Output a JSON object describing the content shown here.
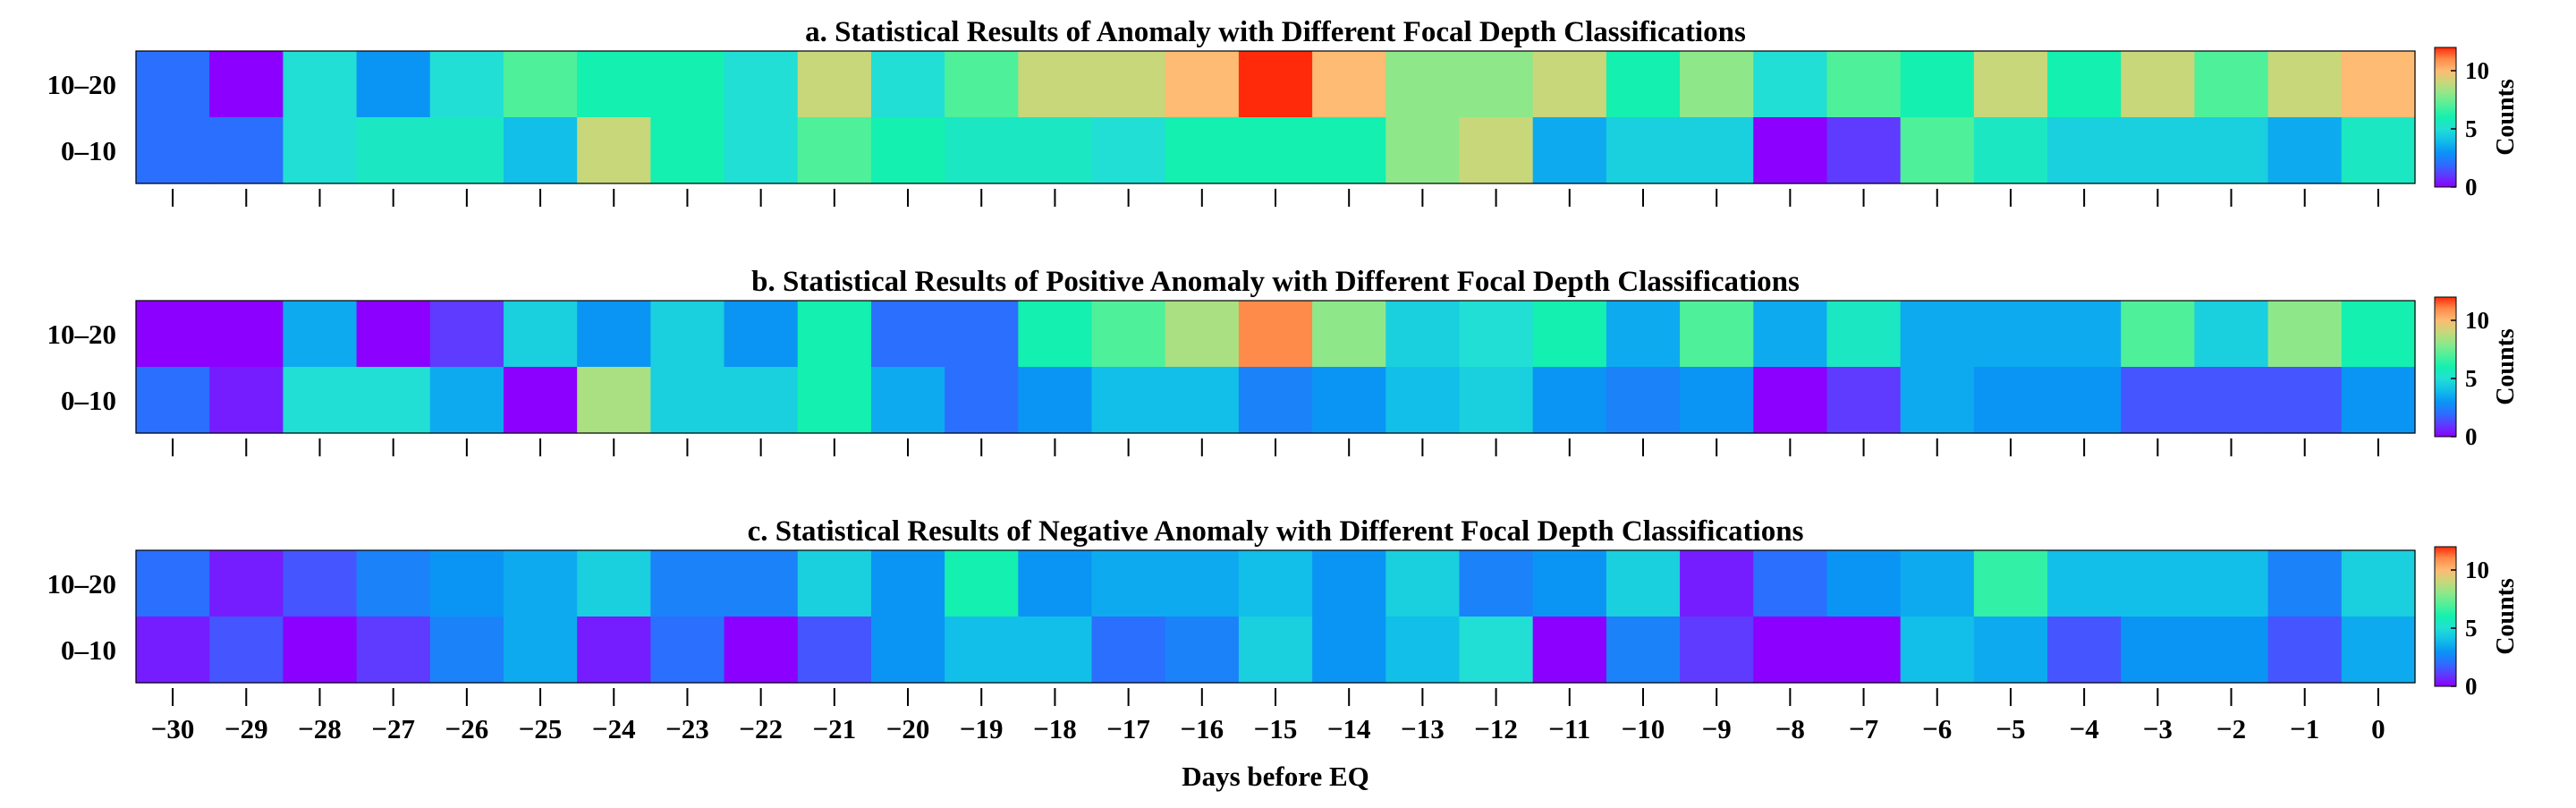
{
  "chart_data": [
    {
      "type": "heatmap",
      "title": "a. Statistical Results of Anomaly with  Different Focal Depth Classifications",
      "x": [
        -30,
        -29,
        -28,
        -27,
        -26,
        -25,
        -24,
        -23,
        -22,
        -21,
        -20,
        -19,
        -18,
        -17,
        -16,
        -15,
        -14,
        -13,
        -12,
        -11,
        -10,
        -9,
        -8,
        -7,
        -6,
        -5,
        -4,
        -3,
        -2,
        -1,
        0
      ],
      "rows": [
        "10–20",
        "0–10"
      ],
      "values": [
        [
          2,
          0,
          5,
          3,
          5,
          7,
          6,
          6,
          5,
          9,
          5,
          7,
          9,
          9,
          10,
          12,
          10,
          8,
          8,
          9,
          6,
          8,
          5,
          7,
          6,
          9,
          6,
          9,
          7,
          9,
          10
        ],
        [
          2,
          2,
          5,
          5.5,
          5.5,
          4,
          9,
          6,
          5,
          7,
          6,
          5.5,
          5.5,
          5,
          6,
          6,
          6,
          8,
          9,
          3.5,
          4.5,
          4.5,
          0,
          1,
          7,
          5.5,
          4.5,
          4.5,
          4.5,
          3.5,
          5.5
        ]
      ],
      "colorbar": {
        "label": "Counts",
        "ticks": [
          0,
          5,
          10
        ],
        "range": [
          0,
          12
        ]
      }
    },
    {
      "type": "heatmap",
      "title": "b. Statistical Results of Positive Anomaly with Different Focal Depth Classifications",
      "x": [
        -30,
        -29,
        -28,
        -27,
        -26,
        -25,
        -24,
        -23,
        -22,
        -21,
        -20,
        -19,
        -18,
        -17,
        -16,
        -15,
        -14,
        -13,
        -12,
        -11,
        -10,
        -9,
        -8,
        -7,
        -6,
        -5,
        -4,
        -3,
        -2,
        -1,
        0
      ],
      "rows": [
        "10–20",
        "0–10"
      ],
      "values": [
        [
          0,
          0,
          3.5,
          0,
          1,
          4.5,
          3,
          4.5,
          3,
          6,
          2,
          2,
          6,
          7,
          8.5,
          11,
          8,
          4.5,
          5,
          6,
          3.5,
          7,
          3.5,
          5.5,
          3.5,
          3.5,
          3.5,
          7,
          4.5,
          8,
          6
        ],
        [
          2,
          0.5,
          5,
          5,
          3.5,
          0,
          8.5,
          4.5,
          4.5,
          6,
          3.5,
          2,
          3,
          4,
          4,
          2.5,
          3,
          4,
          4.5,
          3,
          2.5,
          3,
          0,
          1,
          3.5,
          3,
          3,
          1.5,
          1.5,
          1.5,
          3
        ]
      ],
      "colorbar": {
        "label": "Counts",
        "ticks": [
          0,
          5,
          10
        ],
        "range": [
          0,
          12
        ]
      }
    },
    {
      "type": "heatmap",
      "title": "c. Statistical Results of Negative Anomaly with  Different Focal Depth Classifications",
      "x": [
        -30,
        -29,
        -28,
        -27,
        -26,
        -25,
        -24,
        -23,
        -22,
        -21,
        -20,
        -19,
        -18,
        -17,
        -16,
        -15,
        -14,
        -13,
        -12,
        -11,
        -10,
        -9,
        -8,
        -7,
        -6,
        -5,
        -4,
        -3,
        -2,
        -1,
        0
      ],
      "rows": [
        "10–20",
        "0–10"
      ],
      "values": [
        [
          2,
          0.5,
          1.5,
          2.5,
          3,
          3.5,
          4.5,
          2.5,
          2.5,
          4.5,
          3,
          6,
          3,
          3.5,
          3.5,
          4,
          3,
          4.5,
          2.5,
          3,
          4.5,
          0.5,
          2,
          3,
          3.5,
          6.5,
          4,
          4,
          4,
          2.5,
          4.5
        ],
        [
          0.5,
          1.5,
          0,
          1,
          2.5,
          3.5,
          0.5,
          2,
          0,
          1.5,
          3,
          4,
          4,
          2,
          2.5,
          4.5,
          3,
          4,
          5,
          0,
          2.5,
          1,
          0,
          0,
          4,
          3.5,
          1.5,
          3,
          3,
          1.5,
          3.5
        ]
      ],
      "colorbar": {
        "label": "Counts",
        "ticks": [
          0,
          5,
          10
        ],
        "range": [
          0,
          12
        ]
      }
    }
  ],
  "xaxis": {
    "label": "Days before EQ",
    "tick_labels": [
      "−30",
      "−29",
      "−28",
      "−27",
      "−26",
      "−25",
      "−24",
      "−23",
      "−22",
      "−21",
      "−20",
      "−19",
      "−18",
      "−17",
      "−16",
      "−15",
      "−14",
      "−13",
      "−12",
      "−11",
      "−10",
      "−9",
      "−8",
      "−7",
      "−6",
      "−5",
      "−4",
      "−3",
      "−2",
      "−1",
      "0"
    ]
  },
  "colormap": [
    "#8b00ff",
    "#5f3aff",
    "#2b6fff",
    "#0a95f5",
    "#12bfe8",
    "#21dfd4",
    "#14f0b0",
    "#4ff09a",
    "#8ee88a",
    "#c8d77a",
    "#fdbb74",
    "#ff8b4a",
    "#ff2a0a"
  ]
}
